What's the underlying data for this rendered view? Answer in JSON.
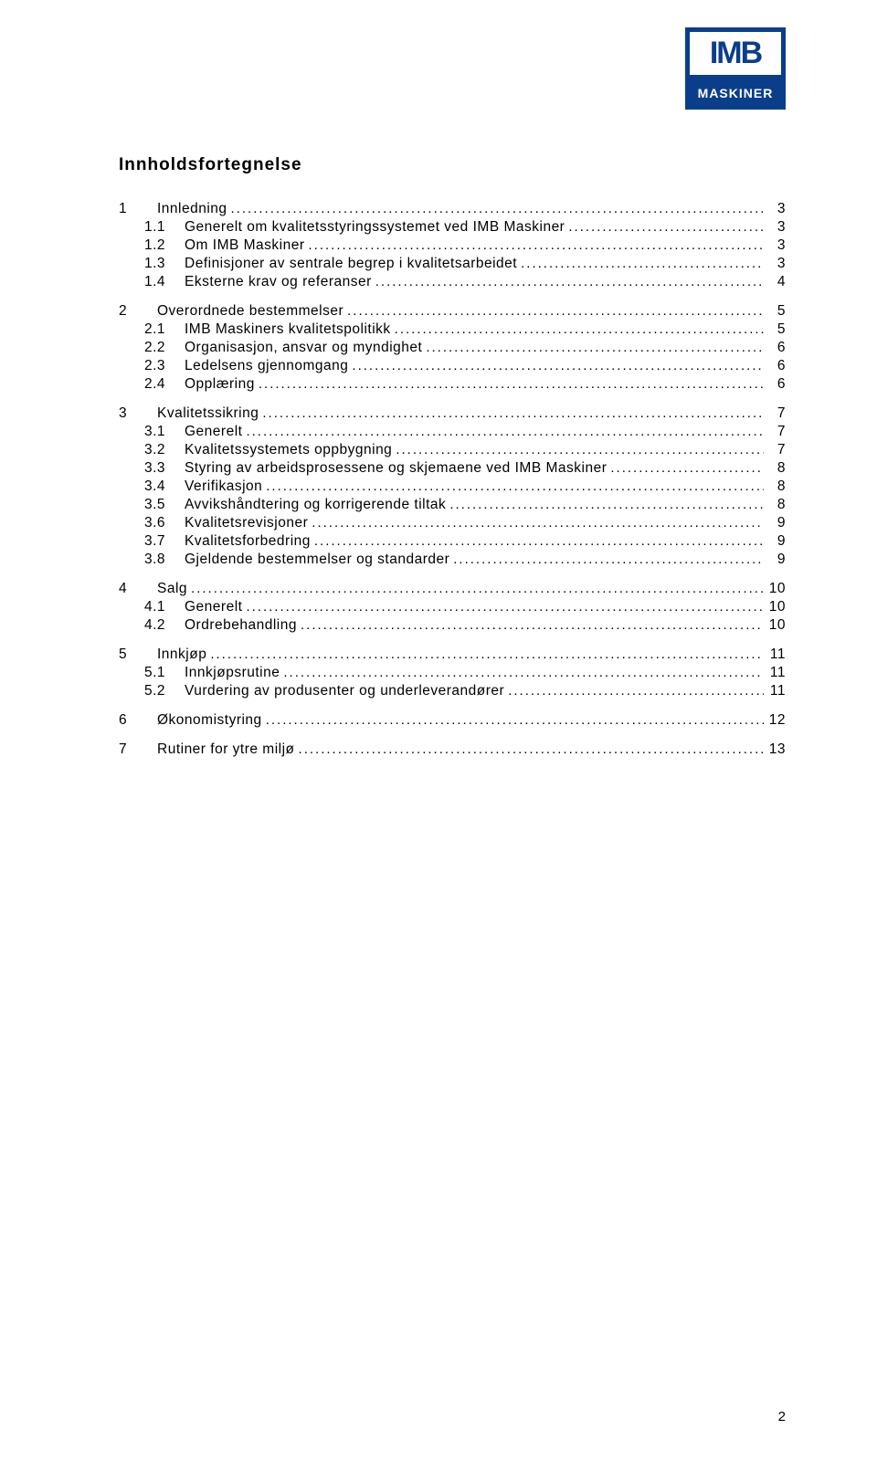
{
  "logo": {
    "text_top": "IMB",
    "text_bottom": "MASKINER"
  },
  "title": "Innholdsfortegnelse",
  "page_number": "2",
  "toc": [
    {
      "level": 1,
      "num": "1",
      "label": "Innledning",
      "page": "3"
    },
    {
      "level": 2,
      "num": "1.1",
      "label": "Generelt om kvalitetsstyringssystemet ved IMB Maskiner",
      "page": "3"
    },
    {
      "level": 2,
      "num": "1.2",
      "label": "Om IMB Maskiner",
      "page": "3"
    },
    {
      "level": 2,
      "num": "1.3",
      "label": "Definisjoner av sentrale begrep i kvalitetsarbeidet",
      "page": "3"
    },
    {
      "level": 2,
      "num": "1.4",
      "label": "Eksterne krav og referanser",
      "page": "4"
    },
    {
      "level": 1,
      "num": "2",
      "label": "Overordnede bestemmelser",
      "page": "5"
    },
    {
      "level": 2,
      "num": "2.1",
      "label": "IMB Maskiners kvalitetspolitikk",
      "page": "5"
    },
    {
      "level": 2,
      "num": "2.2",
      "label": "Organisasjon, ansvar og myndighet",
      "page": "6"
    },
    {
      "level": 2,
      "num": "2.3",
      "label": "Ledelsens gjennomgang",
      "page": "6"
    },
    {
      "level": 2,
      "num": "2.4",
      "label": "Opplæring",
      "page": "6"
    },
    {
      "level": 1,
      "num": "3",
      "label": "Kvalitetssikring",
      "page": "7"
    },
    {
      "level": 2,
      "num": "3.1",
      "label": "Generelt",
      "page": "7"
    },
    {
      "level": 2,
      "num": "3.2",
      "label": "Kvalitetssystemets oppbygning",
      "page": "7"
    },
    {
      "level": 2,
      "num": "3.3",
      "label": "Styring av arbeidsprosessene og skjemaene ved IMB Maskiner",
      "page": "8"
    },
    {
      "level": 2,
      "num": "3.4",
      "label": "Verifikasjon",
      "page": "8"
    },
    {
      "level": 2,
      "num": "3.5",
      "label": "Avvikshåndtering og korrigerende tiltak",
      "page": "8"
    },
    {
      "level": 2,
      "num": "3.6",
      "label": "Kvalitetsrevisjoner",
      "page": "9"
    },
    {
      "level": 2,
      "num": "3.7",
      "label": "Kvalitetsforbedring",
      "page": "9"
    },
    {
      "level": 2,
      "num": "3.8",
      "label": "Gjeldende bestemmelser og standarder",
      "page": "9"
    },
    {
      "level": 1,
      "num": "4",
      "label": "Salg",
      "page": "10"
    },
    {
      "level": 2,
      "num": "4.1",
      "label": "Generelt",
      "page": "10"
    },
    {
      "level": 2,
      "num": "4.2",
      "label": "Ordrebehandling",
      "page": "10"
    },
    {
      "level": 1,
      "num": "5",
      "label": "Innkjøp",
      "page": "11"
    },
    {
      "level": 2,
      "num": "5.1",
      "label": "Innkjøpsrutine",
      "page": "11"
    },
    {
      "level": 2,
      "num": "5.2",
      "label": "Vurdering av produsenter og underleverandører",
      "page": "11"
    },
    {
      "level": 1,
      "num": "6",
      "label": "Økonomistyring",
      "page": "12"
    },
    {
      "level": 1,
      "num": "7",
      "label": "Rutiner for ytre miljø",
      "page": "13"
    }
  ],
  "styles": {
    "background_color": "#ffffff",
    "text_color": "#000000",
    "logo_bg": "#0b3e8a",
    "logo_text_color": "#ffffff",
    "font_family": "Verdana, Geneva, sans-serif",
    "title_fontsize": 19,
    "body_fontsize": 15.5
  }
}
